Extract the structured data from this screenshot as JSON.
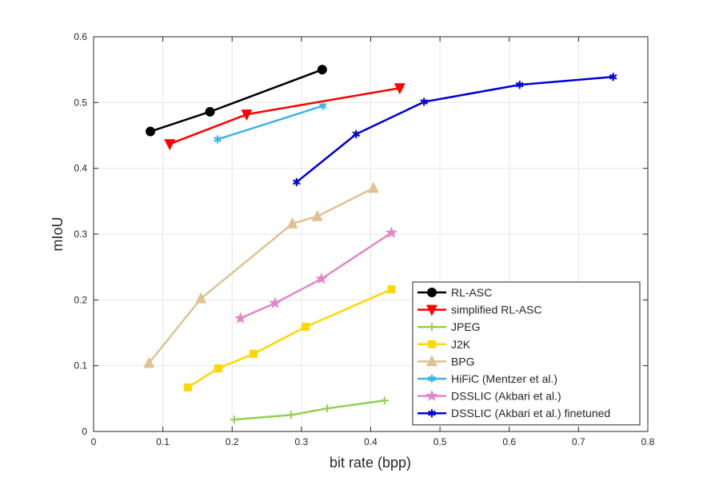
{
  "chart_data": {
    "type": "line",
    "title": "",
    "xlabel": "bit rate (bpp)",
    "ylabel": "mIoU",
    "xlim": [
      0,
      0.8
    ],
    "ylim": [
      0,
      0.6
    ],
    "xticks": [
      0,
      0.1,
      0.2,
      0.3,
      0.4,
      0.5,
      0.6,
      0.7,
      0.8
    ],
    "yticks": [
      0,
      0.1,
      0.2,
      0.3,
      0.4,
      0.5,
      0.6
    ],
    "xtick_labels": [
      "0",
      "0.1",
      "0.2",
      "0.3",
      "0.4",
      "0.5",
      "0.6",
      "0.7",
      "0.8"
    ],
    "ytick_labels": [
      "0",
      "0.1",
      "0.2",
      "0.3",
      "0.4",
      "0.5",
      "0.6"
    ],
    "grid": true,
    "legend_position": "bottom-right",
    "series": [
      {
        "name": "RL-ASC",
        "color": "#000000",
        "marker": "circle",
        "x": [
          0.082,
          0.168,
          0.33
        ],
        "y": [
          0.456,
          0.486,
          0.55
        ]
      },
      {
        "name": "simplified RL-ASC",
        "color": "#ff0000",
        "marker": "triangle-down",
        "x": [
          0.11,
          0.221,
          0.442
        ],
        "y": [
          0.437,
          0.482,
          0.522
        ]
      },
      {
        "name": "JPEG",
        "color": "#92d050",
        "marker": "plus",
        "x": [
          0.203,
          0.285,
          0.337,
          0.42
        ],
        "y": [
          0.018,
          0.025,
          0.035,
          0.047
        ]
      },
      {
        "name": "J2K",
        "color": "#ffd700",
        "marker": "square",
        "x": [
          0.136,
          0.18,
          0.231,
          0.306,
          0.43
        ],
        "y": [
          0.067,
          0.096,
          0.118,
          0.159,
          0.216
        ]
      },
      {
        "name": "BPG",
        "color": "#dec290",
        "marker": "triangle-up",
        "x": [
          0.08,
          0.155,
          0.287,
          0.323,
          0.404
        ],
        "y": [
          0.104,
          0.202,
          0.316,
          0.327,
          0.37
        ]
      },
      {
        "name": "HiFiC (Mentzer et al.)",
        "color": "#3cb4e6",
        "marker": "asterisk",
        "x": [
          0.179,
          0.331
        ],
        "y": [
          0.444,
          0.495
        ]
      },
      {
        "name": "DSSLIC (Akbari et al.)",
        "color": "#e286c8",
        "marker": "pentagram",
        "x": [
          0.212,
          0.262,
          0.329,
          0.43
        ],
        "y": [
          0.172,
          0.195,
          0.232,
          0.302
        ]
      },
      {
        "name": "DSSLIC (Akbari et al.) finetuned",
        "color": "#0000d8",
        "marker": "asterisk",
        "x": [
          0.293,
          0.379,
          0.477,
          0.615,
          0.75
        ],
        "y": [
          0.379,
          0.452,
          0.501,
          0.527,
          0.539
        ]
      }
    ]
  }
}
